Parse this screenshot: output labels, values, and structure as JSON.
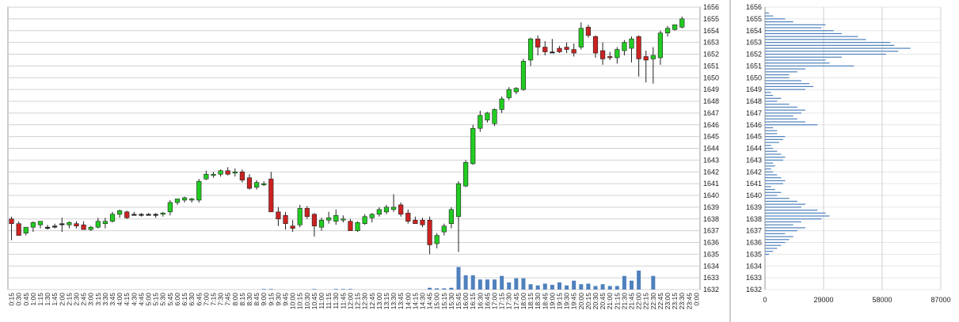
{
  "chart_data": [
    {
      "type": "candlestick",
      "title": "",
      "xlabel": "",
      "ylabel": "",
      "ylim": [
        1632,
        1656
      ],
      "y_ticks": [
        1632,
        1633,
        1634,
        1635,
        1636,
        1637,
        1638,
        1639,
        1640,
        1641,
        1642,
        1643,
        1644,
        1645,
        1646,
        1647,
        1648,
        1649,
        1650,
        1651,
        1652,
        1653,
        1654,
        1655,
        1656
      ],
      "grid": true,
      "x_tick_labels": [
        "0:15",
        "0:30",
        "0:45",
        "1:00",
        "1:15",
        "1:30",
        "1:45",
        "2:00",
        "2:15",
        "2:30",
        "2:45",
        "3:00",
        "3:15",
        "3:30",
        "3:45",
        "4:00",
        "4:15",
        "4:30",
        "4:45",
        "5:00",
        "5:15",
        "5:30",
        "5:45",
        "6:00",
        "6:15",
        "6:30",
        "6:45",
        "7:00",
        "7:15",
        "7:30",
        "7:45",
        "8:00",
        "8:15",
        "8:30",
        "8:45",
        "9:00",
        "9:15",
        "9:30",
        "9:45",
        "10:00",
        "10:15",
        "10:30",
        "10:45",
        "11:00",
        "11:15",
        "11:30",
        "11:45",
        "12:00",
        "12:15",
        "12:30",
        "12:45",
        "13:00",
        "13:15",
        "13:30",
        "13:45",
        "14:00",
        "14:15",
        "14:30",
        "14:45",
        "15:00",
        "15:15",
        "15:30",
        "15:45",
        "16:00",
        "16:15",
        "16:30",
        "16:45",
        "17:00",
        "17:15",
        "17:30",
        "17:45",
        "18:00",
        "18:15",
        "18:30",
        "18:45",
        "19:00",
        "19:15",
        "19:30",
        "19:45",
        "20:00",
        "20:15",
        "20:30",
        "20:45",
        "21:00",
        "21:15",
        "21:30",
        "21:45",
        "22:00",
        "22:15",
        "22:30",
        "22:45",
        "23:00",
        "23:15",
        "23:30",
        "23:45",
        "0:00"
      ],
      "colors": {
        "up": "#22cc22",
        "down": "#cc2222",
        "neutral": "#222222",
        "volume": "#4f81bd",
        "grid": "#d0d0d0"
      },
      "candles": [
        {
          "o": 1638.0,
          "h": 1638.2,
          "l": 1636.2,
          "c": 1637.6
        },
        {
          "o": 1637.6,
          "h": 1637.8,
          "l": 1636.6,
          "c": 1636.6
        },
        {
          "o": 1636.8,
          "h": 1637.3,
          "l": 1636.6,
          "c": 1637.3
        },
        {
          "o": 1637.3,
          "h": 1637.8,
          "l": 1636.9,
          "c": 1637.7
        },
        {
          "o": 1637.5,
          "h": 1637.8,
          "l": 1637.2,
          "c": 1637.8
        },
        {
          "o": 1637.3,
          "h": 1637.5,
          "l": 1637.1,
          "c": 1637.3
        },
        {
          "o": 1637.4,
          "h": 1637.6,
          "l": 1637.2,
          "c": 1637.4
        },
        {
          "o": 1637.6,
          "h": 1638.1,
          "l": 1636.9,
          "c": 1637.6
        },
        {
          "o": 1637.5,
          "h": 1637.8,
          "l": 1637.2,
          "c": 1637.7
        },
        {
          "o": 1637.6,
          "h": 1637.8,
          "l": 1637.2,
          "c": 1637.4
        },
        {
          "o": 1637.5,
          "h": 1637.8,
          "l": 1637.1,
          "c": 1637.1
        },
        {
          "o": 1637.1,
          "h": 1637.4,
          "l": 1637.0,
          "c": 1637.3
        },
        {
          "o": 1637.3,
          "h": 1638.1,
          "l": 1637.2,
          "c": 1637.8
        },
        {
          "o": 1637.6,
          "h": 1638.1,
          "l": 1637.2,
          "c": 1637.8
        },
        {
          "o": 1637.8,
          "h": 1638.6,
          "l": 1637.7,
          "c": 1638.4
        },
        {
          "o": 1638.4,
          "h": 1638.8,
          "l": 1638.1,
          "c": 1638.7
        },
        {
          "o": 1638.6,
          "h": 1638.7,
          "l": 1638.0,
          "c": 1638.1
        },
        {
          "o": 1638.4,
          "h": 1638.6,
          "l": 1638.3,
          "c": 1638.4
        },
        {
          "o": 1638.4,
          "h": 1638.5,
          "l": 1638.2,
          "c": 1638.4
        },
        {
          "o": 1638.4,
          "h": 1638.5,
          "l": 1638.3,
          "c": 1638.4
        },
        {
          "o": 1638.4,
          "h": 1638.5,
          "l": 1638.1,
          "c": 1638.4
        },
        {
          "o": 1638.4,
          "h": 1638.6,
          "l": 1638.2,
          "c": 1638.5
        },
        {
          "o": 1638.6,
          "h": 1639.6,
          "l": 1638.3,
          "c": 1639.4
        },
        {
          "o": 1639.4,
          "h": 1639.7,
          "l": 1639.2,
          "c": 1639.7
        },
        {
          "o": 1639.6,
          "h": 1639.9,
          "l": 1639.4,
          "c": 1639.8
        },
        {
          "o": 1639.6,
          "h": 1639.8,
          "l": 1639.4,
          "c": 1639.7
        },
        {
          "o": 1639.6,
          "h": 1641.4,
          "l": 1639.4,
          "c": 1641.2
        },
        {
          "o": 1641.4,
          "h": 1642.1,
          "l": 1641.3,
          "c": 1641.8
        },
        {
          "o": 1641.7,
          "h": 1642.0,
          "l": 1641.5,
          "c": 1641.8
        },
        {
          "o": 1641.8,
          "h": 1642.2,
          "l": 1641.6,
          "c": 1642.1
        },
        {
          "o": 1642.1,
          "h": 1642.4,
          "l": 1641.7,
          "c": 1641.8
        },
        {
          "o": 1641.9,
          "h": 1642.3,
          "l": 1641.6,
          "c": 1642.0
        },
        {
          "o": 1642.0,
          "h": 1642.2,
          "l": 1641.1,
          "c": 1641.3
        },
        {
          "o": 1641.5,
          "h": 1641.8,
          "l": 1640.5,
          "c": 1640.6
        },
        {
          "o": 1640.7,
          "h": 1641.3,
          "l": 1640.5,
          "c": 1641.1
        },
        {
          "o": 1640.9,
          "h": 1641.2,
          "l": 1640.8,
          "c": 1641.0
        },
        {
          "o": 1641.4,
          "h": 1642.0,
          "l": 1638.6,
          "c": 1638.6
        },
        {
          "o": 1638.6,
          "h": 1639.0,
          "l": 1637.4,
          "c": 1638.0
        },
        {
          "o": 1638.3,
          "h": 1638.6,
          "l": 1637.1,
          "c": 1637.6
        },
        {
          "o": 1637.4,
          "h": 1637.9,
          "l": 1636.9,
          "c": 1637.2
        },
        {
          "o": 1637.5,
          "h": 1639.2,
          "l": 1637.3,
          "c": 1638.9
        },
        {
          "o": 1638.9,
          "h": 1639.1,
          "l": 1638.0,
          "c": 1638.2
        },
        {
          "o": 1638.4,
          "h": 1638.5,
          "l": 1636.5,
          "c": 1637.4
        },
        {
          "o": 1637.3,
          "h": 1638.1,
          "l": 1637.0,
          "c": 1637.9
        },
        {
          "o": 1637.9,
          "h": 1638.6,
          "l": 1637.6,
          "c": 1638.1
        },
        {
          "o": 1637.8,
          "h": 1638.8,
          "l": 1637.5,
          "c": 1638.3
        },
        {
          "o": 1637.9,
          "h": 1638.3,
          "l": 1637.7,
          "c": 1638.0
        },
        {
          "o": 1637.8,
          "h": 1638.0,
          "l": 1637.0,
          "c": 1637.0
        },
        {
          "o": 1637.0,
          "h": 1637.8,
          "l": 1636.9,
          "c": 1637.7
        },
        {
          "o": 1637.6,
          "h": 1638.4,
          "l": 1637.5,
          "c": 1638.2
        },
        {
          "o": 1638.1,
          "h": 1638.5,
          "l": 1637.7,
          "c": 1638.4
        },
        {
          "o": 1638.4,
          "h": 1639.0,
          "l": 1638.2,
          "c": 1638.8
        },
        {
          "o": 1638.6,
          "h": 1639.2,
          "l": 1638.4,
          "c": 1639.0
        },
        {
          "o": 1638.8,
          "h": 1640.1,
          "l": 1638.6,
          "c": 1639.0
        },
        {
          "o": 1639.2,
          "h": 1639.4,
          "l": 1638.2,
          "c": 1638.4
        },
        {
          "o": 1638.5,
          "h": 1638.8,
          "l": 1637.6,
          "c": 1637.8
        },
        {
          "o": 1637.9,
          "h": 1638.2,
          "l": 1637.6,
          "c": 1637.6
        },
        {
          "o": 1637.9,
          "h": 1638.1,
          "l": 1637.3,
          "c": 1637.5
        },
        {
          "o": 1637.9,
          "h": 1638.2,
          "l": 1635.0,
          "c": 1635.8
        },
        {
          "o": 1635.9,
          "h": 1636.8,
          "l": 1635.5,
          "c": 1636.6
        },
        {
          "o": 1636.9,
          "h": 1637.6,
          "l": 1636.6,
          "c": 1637.4
        },
        {
          "o": 1637.6,
          "h": 1639.0,
          "l": 1637.2,
          "c": 1638.8
        },
        {
          "o": 1638.2,
          "h": 1641.2,
          "l": 1635.2,
          "c": 1641.0
        },
        {
          "o": 1640.8,
          "h": 1643.0,
          "l": 1640.7,
          "c": 1642.8
        },
        {
          "o": 1642.7,
          "h": 1646.0,
          "l": 1642.6,
          "c": 1645.7
        },
        {
          "o": 1645.7,
          "h": 1647.2,
          "l": 1645.4,
          "c": 1646.8
        },
        {
          "o": 1646.4,
          "h": 1647.1,
          "l": 1646.2,
          "c": 1647.0
        },
        {
          "o": 1646.1,
          "h": 1647.4,
          "l": 1645.9,
          "c": 1647.3
        },
        {
          "o": 1647.3,
          "h": 1648.4,
          "l": 1647.0,
          "c": 1648.2
        },
        {
          "o": 1648.3,
          "h": 1649.2,
          "l": 1648.1,
          "c": 1649.0
        },
        {
          "o": 1648.8,
          "h": 1649.2,
          "l": 1648.6,
          "c": 1649.1
        },
        {
          "o": 1649.0,
          "h": 1651.6,
          "l": 1648.9,
          "c": 1651.4
        },
        {
          "o": 1651.5,
          "h": 1653.4,
          "l": 1651.0,
          "c": 1653.3
        },
        {
          "o": 1653.3,
          "h": 1653.6,
          "l": 1651.9,
          "c": 1652.6
        },
        {
          "o": 1652.6,
          "h": 1653.1,
          "l": 1651.9,
          "c": 1652.2
        },
        {
          "o": 1652.2,
          "h": 1653.3,
          "l": 1652.1,
          "c": 1652.2
        },
        {
          "o": 1652.5,
          "h": 1652.7,
          "l": 1652.1,
          "c": 1652.2
        },
        {
          "o": 1652.6,
          "h": 1653.0,
          "l": 1652.1,
          "c": 1652.4
        },
        {
          "o": 1652.4,
          "h": 1652.9,
          "l": 1651.8,
          "c": 1652.1
        },
        {
          "o": 1652.6,
          "h": 1654.7,
          "l": 1652.4,
          "c": 1654.2
        },
        {
          "o": 1654.3,
          "h": 1654.5,
          "l": 1653.4,
          "c": 1653.6
        },
        {
          "o": 1653.5,
          "h": 1653.6,
          "l": 1651.7,
          "c": 1652.1
        },
        {
          "o": 1652.3,
          "h": 1653.0,
          "l": 1651.1,
          "c": 1651.6
        },
        {
          "o": 1651.8,
          "h": 1652.2,
          "l": 1651.5,
          "c": 1651.7
        },
        {
          "o": 1651.7,
          "h": 1652.6,
          "l": 1651.2,
          "c": 1652.4
        },
        {
          "o": 1652.3,
          "h": 1653.2,
          "l": 1651.9,
          "c": 1653.0
        },
        {
          "o": 1652.5,
          "h": 1653.5,
          "l": 1651.3,
          "c": 1653.3
        },
        {
          "o": 1653.5,
          "h": 1653.6,
          "l": 1650.1,
          "c": 1651.6
        },
        {
          "o": 1651.8,
          "h": 1652.3,
          "l": 1649.6,
          "c": 1651.5
        },
        {
          "o": 1651.6,
          "h": 1652.6,
          "l": 1649.5,
          "c": 1651.9
        },
        {
          "o": 1651.7,
          "h": 1654.0,
          "l": 1651.1,
          "c": 1653.8
        },
        {
          "o": 1653.8,
          "h": 1654.4,
          "l": 1653.5,
          "c": 1654.2
        },
        {
          "o": 1654.1,
          "h": 1654.5,
          "l": 1654.0,
          "c": 1654.5
        },
        {
          "o": 1654.3,
          "h": 1655.2,
          "l": 1654.2,
          "c": 1655.0
        }
      ],
      "volume": [
        0,
        0,
        0,
        0,
        0,
        0,
        0,
        0,
        0,
        0,
        0,
        0,
        0,
        0,
        0,
        0,
        0,
        0,
        0,
        0,
        0,
        0,
        0,
        0,
        0,
        0,
        0,
        0,
        0,
        0,
        0,
        0,
        0,
        0,
        0,
        0.05,
        0.05,
        0,
        0,
        0,
        0,
        0,
        0.05,
        0,
        0,
        0.05,
        0.05,
        0.05,
        0,
        0,
        0,
        0,
        0,
        0,
        0,
        0,
        0,
        0,
        0.15,
        0.1,
        0.1,
        0.15,
        1.9,
        1.2,
        1.2,
        0.85,
        0.85,
        0.85,
        1.15,
        0.6,
        0.95,
        0.95,
        0.45,
        0.35,
        0.5,
        0.4,
        0.6,
        0.35,
        0.75,
        0.45,
        0.5,
        0.3,
        0.45,
        0.3,
        0.3,
        1.15,
        0.75,
        1.6,
        0,
        1.15,
        0,
        0,
        0,
        0,
        0,
        0
      ]
    },
    {
      "type": "bar",
      "orientation": "horizontal",
      "title": "",
      "xlabel": "",
      "ylabel": "",
      "xlim": [
        0,
        87000
      ],
      "x_ticks": [
        "0",
        "29000",
        "58000",
        "87000"
      ],
      "y_ticks": [
        1632,
        1633,
        1634,
        1635,
        1636,
        1637,
        1638,
        1639,
        1640,
        1641,
        1642,
        1643,
        1644,
        1645,
        1646,
        1647,
        1648,
        1649,
        1650,
        1651,
        1652,
        1653,
        1654,
        1655,
        1656
      ],
      "grid": true,
      "colors": {
        "bar": "#4f81bd",
        "grid": "#d0d0d0"
      },
      "levels": [
        1635.0,
        1635.25,
        1635.5,
        1635.75,
        1636.0,
        1636.25,
        1636.5,
        1636.75,
        1637.0,
        1637.25,
        1637.5,
        1637.75,
        1638.0,
        1638.25,
        1638.5,
        1638.75,
        1639.0,
        1639.25,
        1639.5,
        1639.75,
        1640.0,
        1640.25,
        1640.5,
        1640.75,
        1641.0,
        1641.25,
        1641.5,
        1641.75,
        1642.0,
        1642.25,
        1642.5,
        1642.75,
        1643.0,
        1643.25,
        1643.5,
        1643.75,
        1644.0,
        1644.25,
        1644.5,
        1644.75,
        1645.0,
        1645.25,
        1645.5,
        1645.75,
        1646.0,
        1646.25,
        1646.5,
        1646.75,
        1647.0,
        1647.25,
        1647.5,
        1647.75,
        1648.0,
        1648.25,
        1648.5,
        1648.75,
        1649.0,
        1649.25,
        1649.5,
        1649.75,
        1650.0,
        1650.25,
        1650.5,
        1650.75,
        1651.0,
        1651.25,
        1651.5,
        1651.75,
        1652.0,
        1652.25,
        1652.5,
        1652.75,
        1653.0,
        1653.25,
        1653.5,
        1653.75,
        1654.0,
        1654.25,
        1654.5,
        1654.75,
        1655.0,
        1655.25,
        1655.5
      ],
      "values": [
        2000,
        4000,
        6000,
        8000,
        10000,
        12000,
        14000,
        10000,
        16000,
        20000,
        14000,
        18000,
        28000,
        32000,
        30000,
        26000,
        18000,
        20000,
        16000,
        12000,
        6000,
        8000,
        5000,
        3000,
        9000,
        10000,
        8000,
        6000,
        4000,
        3000,
        5000,
        4000,
        9000,
        10000,
        8000,
        6000,
        4000,
        3000,
        7000,
        9000,
        10000,
        6000,
        6000,
        4000,
        26000,
        20000,
        16000,
        14000,
        18000,
        20000,
        16000,
        12000,
        6000,
        8000,
        4000,
        3000,
        20000,
        24000,
        22000,
        18000,
        12000,
        12000,
        16000,
        20000,
        44000,
        32000,
        30000,
        38000,
        60000,
        66000,
        72000,
        64000,
        62000,
        50000,
        46000,
        38000,
        34000,
        28000,
        30000,
        14000,
        10000,
        4000,
        2000
      ]
    }
  ]
}
